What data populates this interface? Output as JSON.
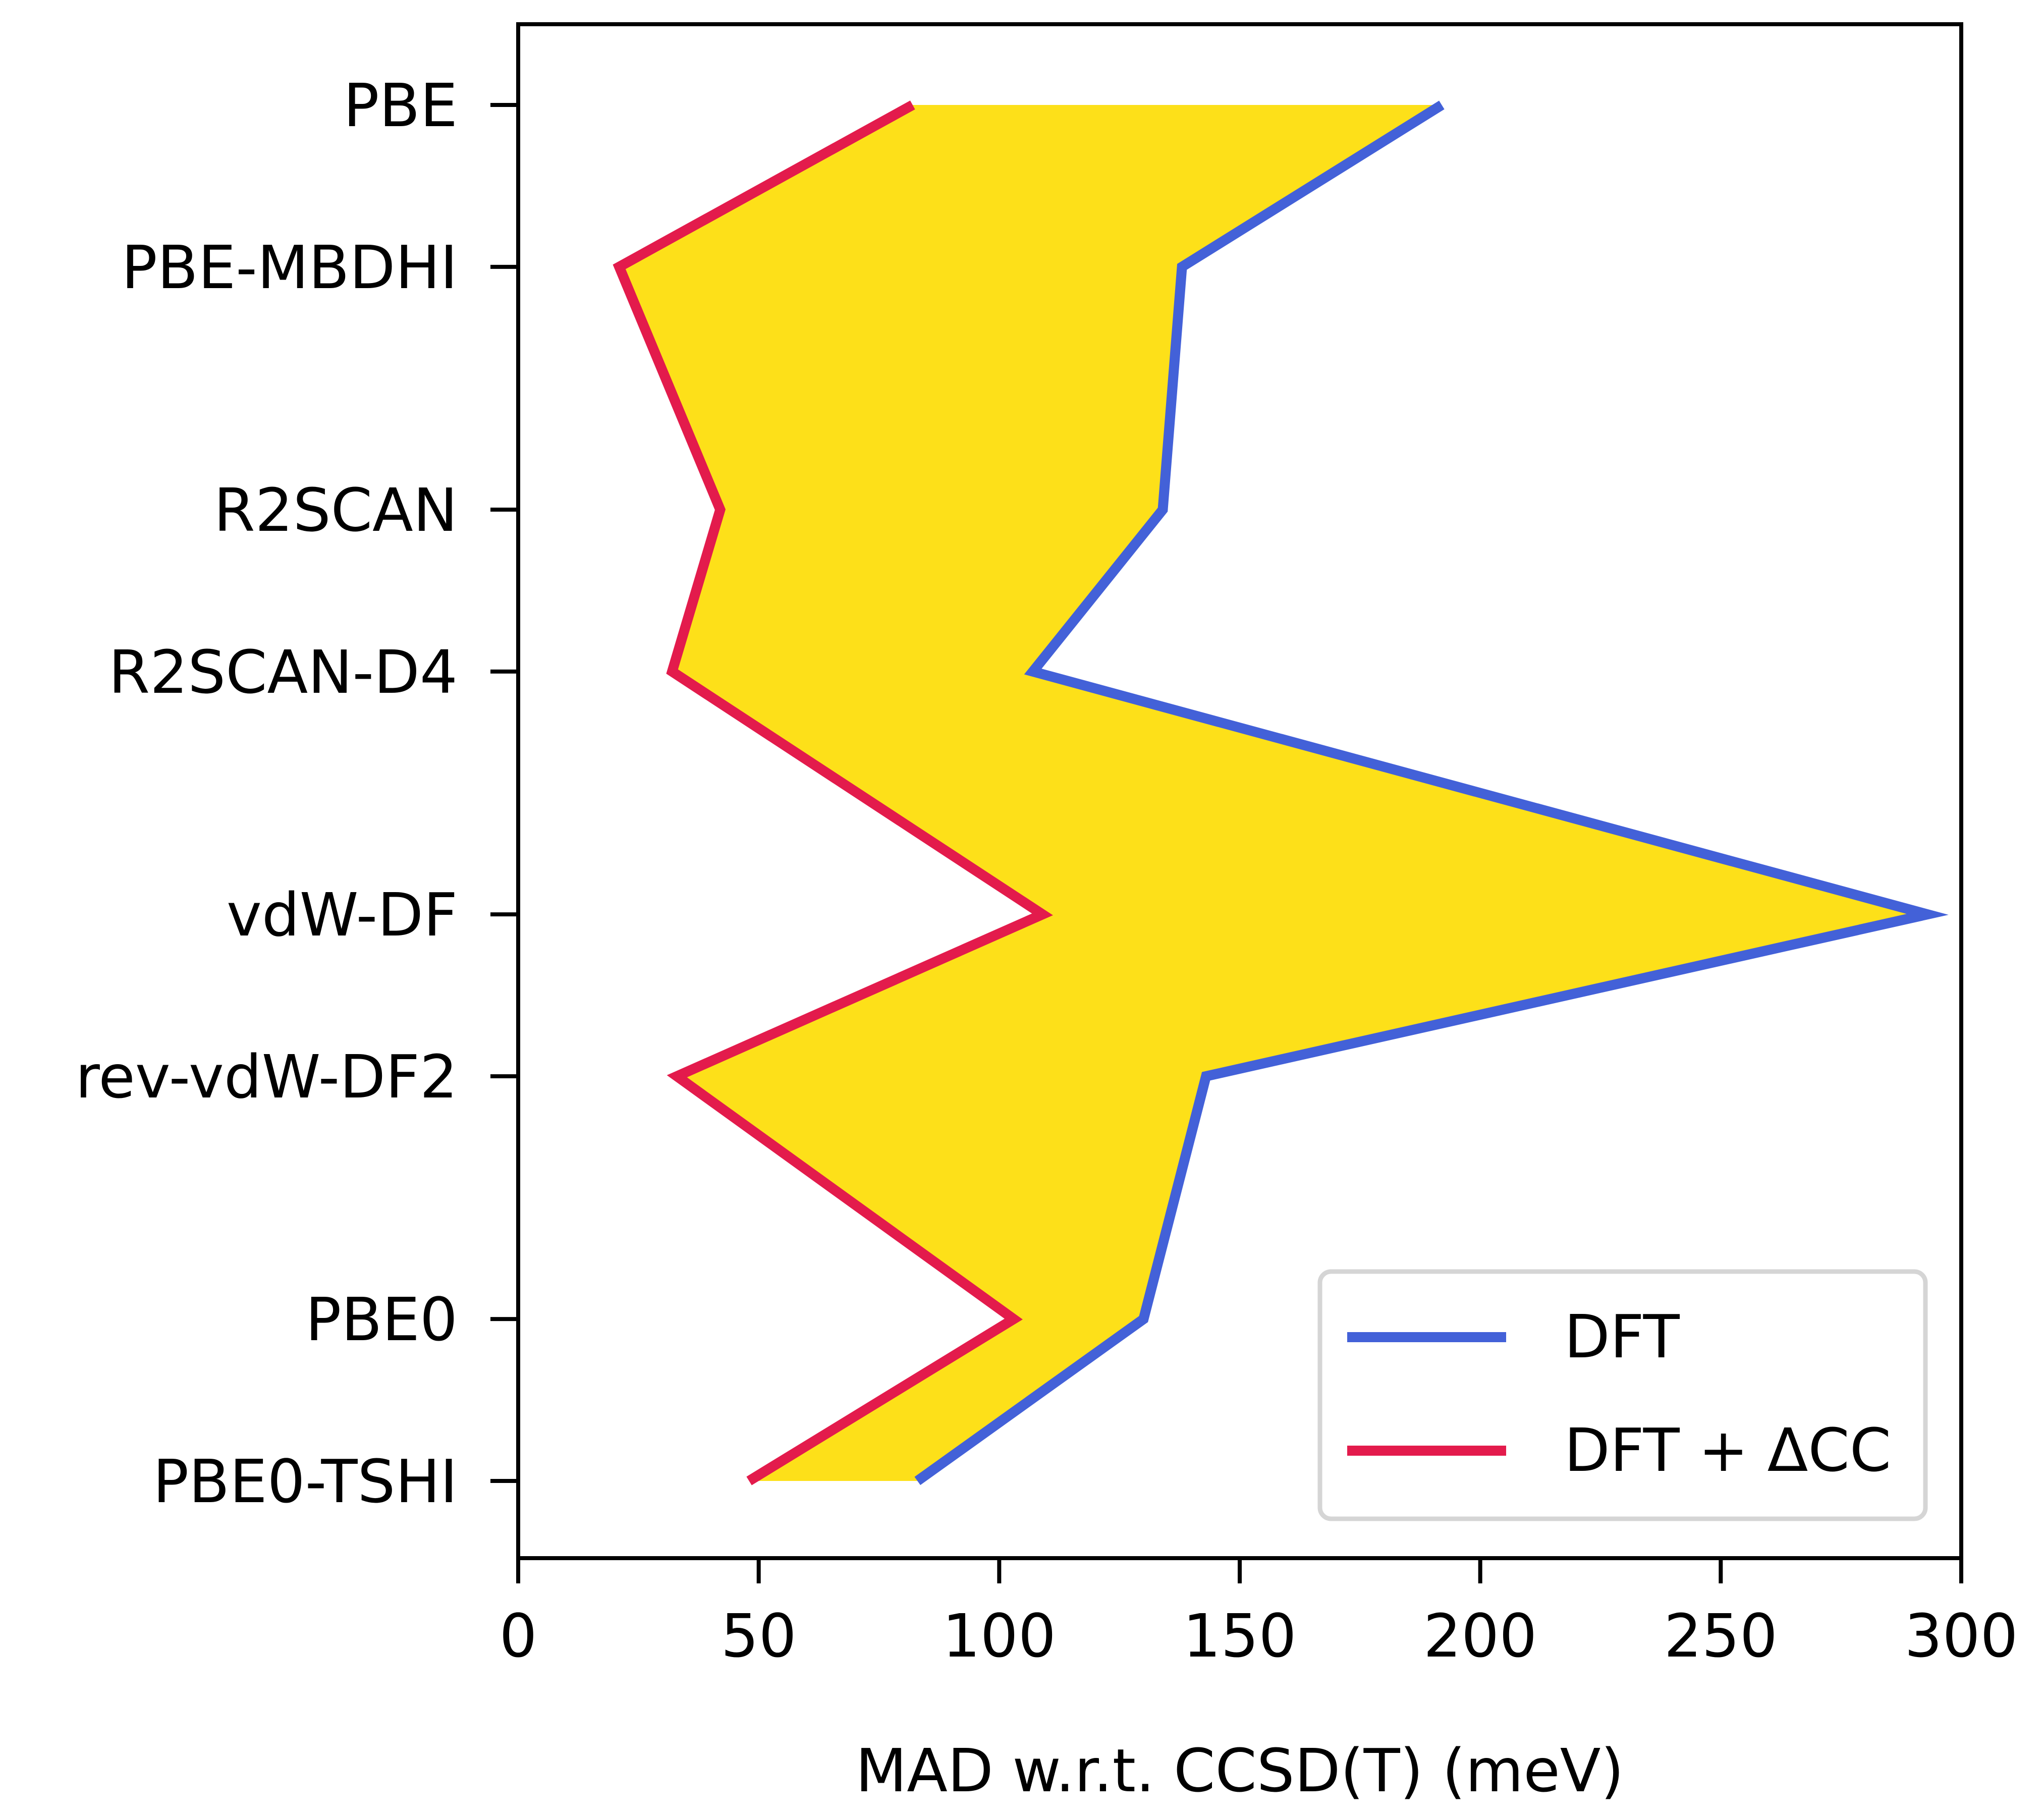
{
  "chart_data": {
    "type": "line",
    "orientation": "horizontal-values",
    "xlabel": "MAD w.r.t. CCSD(T) (meV)",
    "ylabel": "",
    "xlim": [
      0,
      300
    ],
    "xticks": [
      0,
      50,
      100,
      150,
      200,
      250,
      300
    ],
    "categories": [
      "PBE",
      "PBE-MBDHI",
      "R2SCAN",
      "R2SCAN-D4",
      "vdW-DF",
      "rev-vdW-DF2",
      "PBE0",
      "PBE0-TSHI"
    ],
    "category_positions": [
      8.5,
      7.5,
      6.0,
      5.0,
      3.5,
      2.5,
      1.0,
      0.0
    ],
    "series": [
      {
        "name": "DFT",
        "color": "#4361d8",
        "values": [
          192,
          138,
          134,
          107,
          293,
          143,
          130,
          83
        ]
      },
      {
        "name": "DFT + ΔCC",
        "color": "#e31b4c",
        "values": [
          82,
          21,
          42,
          32,
          109,
          33,
          103,
          48
        ]
      }
    ],
    "fill_between": {
      "color": "#fde019"
    },
    "legend": {
      "placement": "lower-right",
      "entries": [
        "DFT",
        "DFT + ΔCC"
      ]
    },
    "grid": false
  }
}
